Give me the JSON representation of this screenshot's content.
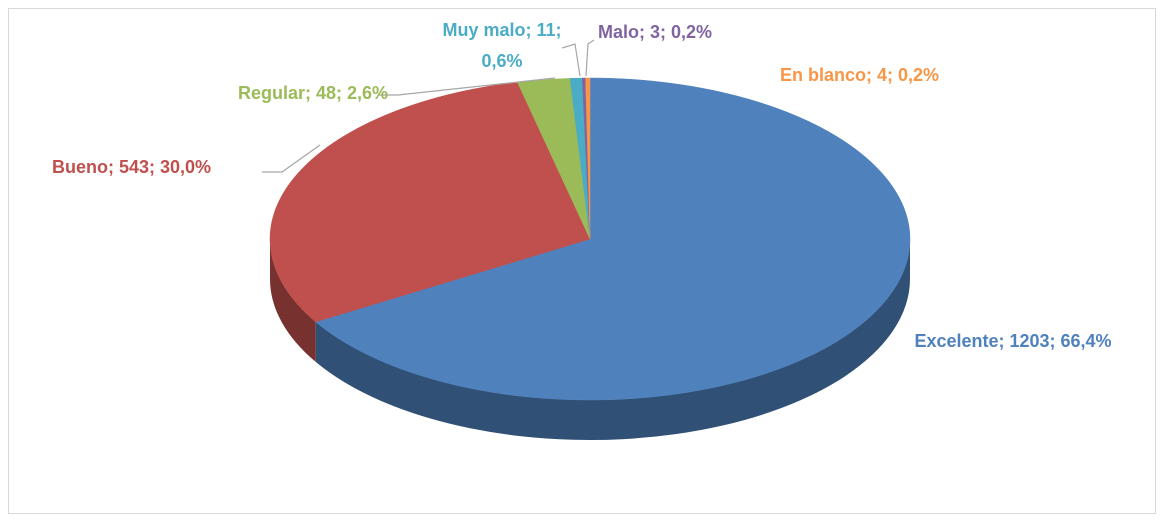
{
  "chart_data": {
    "type": "pie",
    "categories": [
      "Excelente",
      "Bueno",
      "Regular",
      "Muy malo",
      "Malo",
      "En blanco"
    ],
    "values": [
      1203,
      543,
      48,
      11,
      3,
      4
    ],
    "value_labels": [
      "Excelente; 1203; 66,4%",
      "Bueno; 543; 30,0%",
      "Regular; 48; 2,6%",
      "Muy malo; 11; 0,6%",
      "Malo; 3; 0,2%",
      "En blanco; 4; 0,2%"
    ],
    "colors": [
      "#4f81bd",
      "#c0504d",
      "#9bbb59",
      "#4bacc6",
      "#8064a2",
      "#f79646"
    ],
    "three_d": true
  }
}
